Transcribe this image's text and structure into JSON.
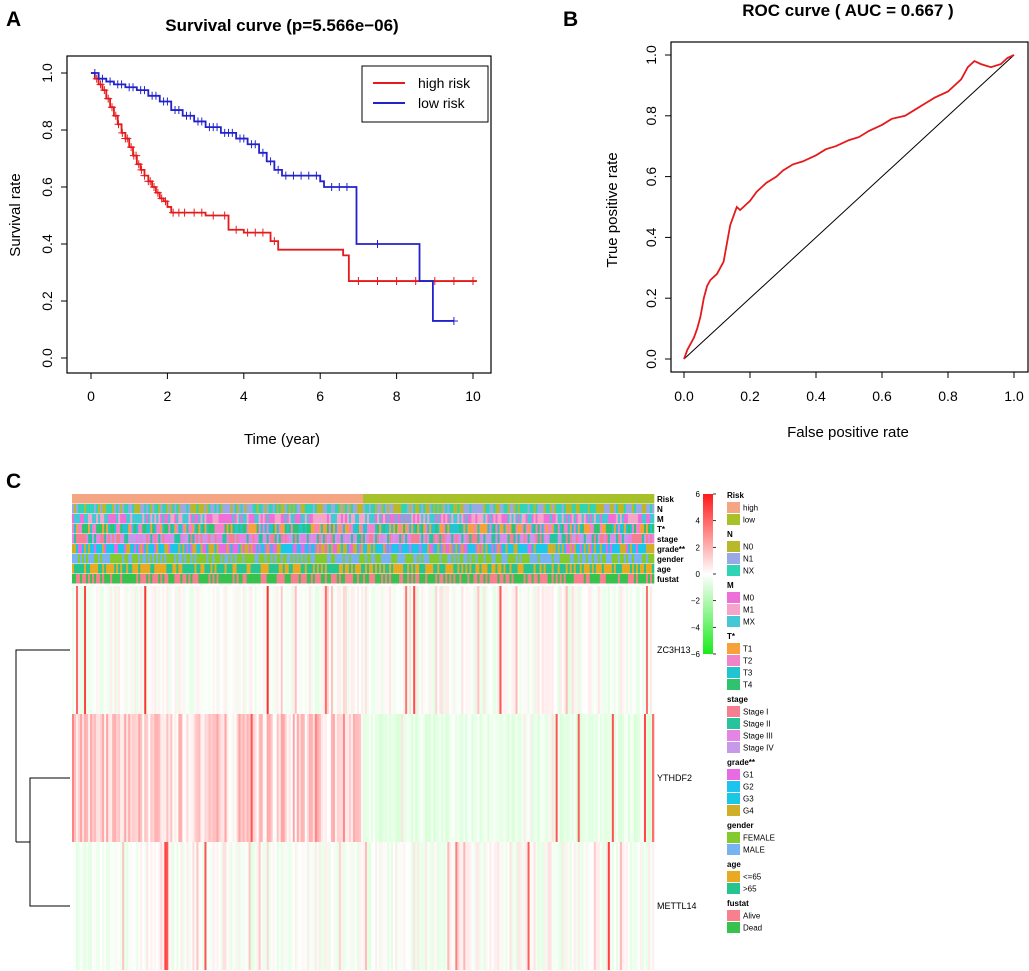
{
  "panel_labels": {
    "a": "A",
    "b": "B",
    "c": "C"
  },
  "chart_data": [
    {
      "type": "line",
      "name": "survival",
      "title": "Survival curve (p=5.566e−06)",
      "xlabel": "Time (year)",
      "ylabel": "Survival rate",
      "xlim": [
        0,
        10.2
      ],
      "ylim": [
        0,
        1
      ],
      "xticks": [
        0,
        2,
        4,
        6,
        8,
        10
      ],
      "yticks": [
        0.0,
        0.2,
        0.4,
        0.6,
        0.8,
        1.0
      ],
      "ytick_labels": [
        "0.0",
        "0.2",
        "0.4",
        "0.6",
        "0.8",
        "1.0"
      ],
      "legend_position": "top-right",
      "series": [
        {
          "name": "high risk",
          "color": "#e41a1c",
          "steps": [
            [
              0,
              1.0
            ],
            [
              0.1,
              0.98
            ],
            [
              0.2,
              0.96
            ],
            [
              0.3,
              0.94
            ],
            [
              0.4,
              0.91
            ],
            [
              0.5,
              0.88
            ],
            [
              0.6,
              0.85
            ],
            [
              0.7,
              0.82
            ],
            [
              0.8,
              0.79
            ],
            [
              0.9,
              0.77
            ],
            [
              1.0,
              0.74
            ],
            [
              1.1,
              0.71
            ],
            [
              1.2,
              0.68
            ],
            [
              1.3,
              0.66
            ],
            [
              1.4,
              0.64
            ],
            [
              1.5,
              0.62
            ],
            [
              1.6,
              0.6
            ],
            [
              1.7,
              0.58
            ],
            [
              1.8,
              0.56
            ],
            [
              1.9,
              0.55
            ],
            [
              2.0,
              0.53
            ],
            [
              2.1,
              0.51
            ],
            [
              2.5,
              0.51
            ],
            [
              3.0,
              0.5
            ],
            [
              3.6,
              0.45
            ],
            [
              4.0,
              0.44
            ],
            [
              4.7,
              0.41
            ],
            [
              4.9,
              0.38
            ],
            [
              6.6,
              0.36
            ],
            [
              6.75,
              0.27
            ],
            [
              10.1,
              0.27
            ]
          ],
          "censored": [
            0.15,
            0.25,
            0.35,
            0.45,
            0.55,
            0.65,
            0.72,
            0.82,
            0.9,
            0.95,
            1.05,
            1.12,
            1.18,
            1.25,
            1.32,
            1.4,
            1.5,
            1.55,
            1.65,
            1.75,
            1.85,
            1.95,
            2.15,
            2.3,
            2.45,
            2.7,
            2.9,
            3.2,
            3.5,
            3.8,
            4.1,
            4.3,
            4.5,
            4.8,
            7.0,
            7.5,
            8.0,
            8.5,
            9.0,
            9.5,
            10.0
          ]
        },
        {
          "name": "low risk",
          "color": "#2222cc",
          "steps": [
            [
              0,
              1.0
            ],
            [
              0.2,
              0.98
            ],
            [
              0.4,
              0.97
            ],
            [
              0.6,
              0.96
            ],
            [
              0.9,
              0.95
            ],
            [
              1.2,
              0.94
            ],
            [
              1.5,
              0.92
            ],
            [
              1.8,
              0.9
            ],
            [
              2.1,
              0.87
            ],
            [
              2.4,
              0.85
            ],
            [
              2.7,
              0.83
            ],
            [
              3.0,
              0.81
            ],
            [
              3.4,
              0.79
            ],
            [
              3.8,
              0.77
            ],
            [
              4.1,
              0.75
            ],
            [
              4.4,
              0.72
            ],
            [
              4.6,
              0.69
            ],
            [
              4.8,
              0.66
            ],
            [
              5.0,
              0.64
            ],
            [
              6.0,
              0.62
            ],
            [
              6.1,
              0.6
            ],
            [
              6.9,
              0.6
            ],
            [
              6.95,
              0.4
            ],
            [
              8.6,
              0.4
            ],
            [
              8.6,
              0.27
            ],
            [
              8.95,
              0.27
            ],
            [
              8.95,
              0.13
            ],
            [
              9.5,
              0.13
            ]
          ],
          "censored": [
            0.1,
            0.3,
            0.5,
            0.7,
            0.8,
            1.0,
            1.1,
            1.3,
            1.4,
            1.6,
            1.7,
            1.9,
            2.0,
            2.2,
            2.3,
            2.5,
            2.6,
            2.8,
            2.9,
            3.1,
            3.2,
            3.3,
            3.5,
            3.6,
            3.7,
            3.9,
            4.0,
            4.2,
            4.3,
            4.5,
            4.7,
            4.9,
            5.1,
            5.3,
            5.5,
            5.7,
            5.9,
            6.3,
            6.5,
            6.7,
            7.5,
            9.5
          ]
        }
      ]
    },
    {
      "type": "line",
      "name": "roc",
      "title": "ROC curve ( AUC =  0.667 )",
      "xlabel": "False positive rate",
      "ylabel": "True positive rate",
      "xlim": [
        0,
        1
      ],
      "ylim": [
        0,
        1
      ],
      "xticks": [
        0.0,
        0.2,
        0.4,
        0.6,
        0.8,
        1.0
      ],
      "yticks": [
        0.0,
        0.2,
        0.4,
        0.6,
        0.8,
        1.0
      ],
      "xtick_labels": [
        "0.0",
        "0.2",
        "0.4",
        "0.6",
        "0.8",
        "1.0"
      ],
      "ytick_labels": [
        "0.0",
        "0.2",
        "0.4",
        "0.6",
        "0.8",
        "1.0"
      ],
      "series": [
        {
          "name": "ROC",
          "color": "#e41a1c",
          "x": [
            0,
            0.01,
            0.02,
            0.03,
            0.04,
            0.05,
            0.06,
            0.07,
            0.08,
            0.1,
            0.12,
            0.13,
            0.14,
            0.15,
            0.16,
            0.17,
            0.18,
            0.2,
            0.22,
            0.25,
            0.28,
            0.3,
            0.33,
            0.36,
            0.4,
            0.43,
            0.46,
            0.5,
            0.53,
            0.56,
            0.6,
            0.63,
            0.67,
            0.7,
            0.73,
            0.76,
            0.8,
            0.84,
            0.86,
            0.88,
            0.9,
            0.93,
            0.96,
            0.98,
            1.0
          ],
          "y": [
            0,
            0.03,
            0.05,
            0.07,
            0.1,
            0.14,
            0.2,
            0.24,
            0.26,
            0.28,
            0.32,
            0.38,
            0.44,
            0.47,
            0.5,
            0.49,
            0.5,
            0.52,
            0.55,
            0.58,
            0.6,
            0.62,
            0.64,
            0.65,
            0.67,
            0.69,
            0.7,
            0.72,
            0.73,
            0.75,
            0.77,
            0.79,
            0.8,
            0.82,
            0.84,
            0.86,
            0.88,
            0.92,
            0.96,
            0.98,
            0.97,
            0.96,
            0.97,
            0.99,
            1.0
          ]
        },
        {
          "name": "diagonal",
          "color": "#000000",
          "x": [
            0,
            1
          ],
          "y": [
            0,
            1
          ]
        }
      ]
    },
    {
      "type": "heatmap",
      "name": "risk-heatmap",
      "genes": [
        "ZC3H13",
        "YTHDF2",
        "METTL14"
      ],
      "annotation_rows": [
        "Risk",
        "N",
        "M",
        "T*",
        "stage",
        "grade**",
        "gender",
        "age",
        "fustat"
      ],
      "n_samples": 290,
      "high_risk_fraction": 0.5,
      "scale": {
        "min": -6,
        "max": 6,
        "ticks": [
          6,
          4,
          2,
          0,
          -2,
          -4,
          -6
        ],
        "tick_labels": [
          "6",
          "4",
          "2",
          "0",
          "−2",
          "−4",
          "−6"
        ]
      },
      "legend": [
        {
          "title": "Risk",
          "items": [
            {
              "label": "high",
              "color": "#f4a582"
            },
            {
              "label": "low",
              "color": "#a6c12a"
            }
          ]
        },
        {
          "title": "N",
          "items": [
            {
              "label": "N0",
              "color": "#b8b82a"
            },
            {
              "label": "N1",
              "color": "#9aa9e6"
            },
            {
              "label": "NX",
              "color": "#2fd4b5"
            }
          ]
        },
        {
          "title": "M",
          "items": [
            {
              "label": "M0",
              "color": "#ee6fd7"
            },
            {
              "label": "M1",
              "color": "#f5a5c9"
            },
            {
              "label": "MX",
              "color": "#45c8d6"
            }
          ]
        },
        {
          "title": "T*",
          "items": [
            {
              "label": "T1",
              "color": "#f6a13a"
            },
            {
              "label": "T2",
              "color": "#f383c9"
            },
            {
              "label": "T3",
              "color": "#22c4cf"
            },
            {
              "label": "T4",
              "color": "#2fc36f"
            }
          ]
        },
        {
          "title": "stage",
          "items": [
            {
              "label": "Stage I",
              "color": "#f57f90"
            },
            {
              "label": "Stage II",
              "color": "#26c39d"
            },
            {
              "label": "Stage III",
              "color": "#e583e6"
            },
            {
              "label": "Stage IV",
              "color": "#c69ae8"
            }
          ]
        },
        {
          "title": "grade**",
          "items": [
            {
              "label": "G1",
              "color": "#e86be4"
            },
            {
              "label": "G2",
              "color": "#1fc3f0"
            },
            {
              "label": "G3",
              "color": "#18c8e4"
            },
            {
              "label": "G4",
              "color": "#cfae2a"
            }
          ]
        },
        {
          "title": "gender",
          "items": [
            {
              "label": "FEMALE",
              "color": "#84c92e"
            },
            {
              "label": "MALE",
              "color": "#77b3f0"
            }
          ]
        },
        {
          "title": "age",
          "items": [
            {
              "label": "<=65",
              "color": "#e8aa22"
            },
            {
              "label": ">65",
              "color": "#27c48f"
            }
          ]
        },
        {
          "title": "fustat",
          "items": [
            {
              "label": "Alive",
              "color": "#f77f8e"
            },
            {
              "label": "Dead",
              "color": "#36c24c"
            }
          ]
        }
      ]
    }
  ]
}
